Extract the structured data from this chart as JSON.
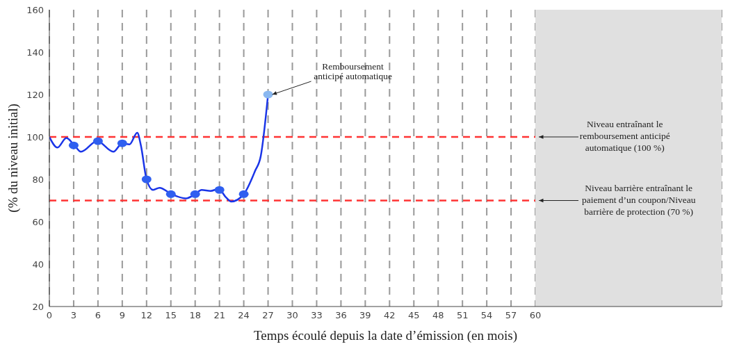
{
  "chart_data": {
    "type": "line",
    "xlabel": "Temps écoulé depuis la date d’émission (en mois)",
    "ylabel": "(% du niveau initial)",
    "xlim": [
      0,
      83
    ],
    "xticks": [
      0,
      3,
      6,
      9,
      12,
      15,
      18,
      21,
      24,
      27,
      30,
      33,
      36,
      39,
      42,
      45,
      48,
      51,
      54,
      57,
      60
    ],
    "ylim": [
      20,
      160
    ],
    "yticks": [
      20,
      40,
      60,
      80,
      100,
      120,
      140,
      160
    ],
    "grid": "x",
    "series": [
      {
        "color": "#1a35e8",
        "line_style": "solid",
        "marker": "none",
        "x": [
          0,
          1,
          2.1,
          3.1,
          3.9,
          5.9,
          7.9,
          9,
          9.9,
          10.85,
          11.3,
          12,
          12.8,
          13.6,
          15.1,
          16.85,
          18,
          18.8,
          19.9,
          20.9,
          21.8,
          22.45,
          24,
          25.4,
          26.1,
          27
        ],
        "values": [
          100,
          95,
          99.5,
          96,
          93,
          98,
          93,
          97,
          96.5,
          102,
          96,
          80,
          75,
          76,
          73,
          71,
          73,
          75,
          74.5,
          75.5,
          71.5,
          69.5,
          73,
          84,
          91,
          120
        ]
      },
      {
        "type": "scatter",
        "marker": "circle",
        "x": [
          3,
          6,
          9,
          12,
          15,
          18,
          21,
          24,
          27
        ],
        "values": [
          96,
          98,
          97,
          80,
          73,
          73,
          75,
          73,
          120
        ],
        "colors": [
          "#2f5ff0",
          "#2f5ff0",
          "#2f5ff0",
          "#2f5ff0",
          "#2f5ff0",
          "#2f5ff0",
          "#2f5ff0",
          "#2f5ff0",
          "#8ab8f0"
        ]
      }
    ],
    "ref_lines": [
      {
        "axis": "y",
        "value": 100,
        "label": "Niveau entraînant le remboursement anticipé automatique (100 %)",
        "color": "#ff3333",
        "line_style": "dashed"
      },
      {
        "axis": "y",
        "value": 70,
        "label": "Niveau barrière entraînant le paiement d’un coupon/Niveau barrière de protection (70 %)",
        "color": "#ff3333",
        "line_style": "dashed"
      }
    ],
    "bands": [
      {
        "axis": "x",
        "from": 60,
        "to": 83,
        "color": "#e0e0e0"
      }
    ],
    "annotations": [
      {
        "text": "Remboursement anticipé automatique",
        "x": 27,
        "y": 120
      }
    ]
  }
}
